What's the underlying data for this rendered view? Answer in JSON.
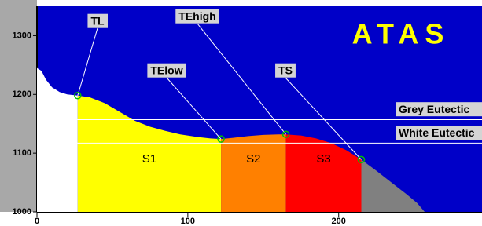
{
  "chart_data": {
    "type": "area",
    "title": "ATAS",
    "x": [
      0,
      3,
      6,
      10,
      15,
      20,
      27,
      35,
      45,
      55,
      65,
      75,
      85,
      95,
      105,
      115,
      122,
      130,
      140,
      150,
      160,
      165,
      175,
      185,
      195,
      205,
      215,
      225,
      235,
      245,
      252,
      257
    ],
    "values": [
      1245,
      1240,
      1225,
      1212,
      1204,
      1200,
      1198,
      1195,
      1185,
      1170,
      1155,
      1145,
      1138,
      1132,
      1128,
      1125,
      1124,
      1126,
      1129,
      1131,
      1132,
      1132,
      1130,
      1125,
      1117,
      1105,
      1089,
      1070,
      1050,
      1030,
      1015,
      1000
    ],
    "points": [
      {
        "label": "TL",
        "x": 27,
        "y": 1198
      },
      {
        "label": "TElow",
        "x": 122,
        "y": 1124
      },
      {
        "label": "TEhigh",
        "x": 165,
        "y": 1132
      },
      {
        "label": "TS",
        "x": 215,
        "y": 1089
      }
    ],
    "fill_colors": [
      "#ffffff",
      "#ffff00",
      "#ff8000",
      "#ff0000",
      "#808080"
    ],
    "regions": [
      "S1",
      "S2",
      "S3"
    ],
    "reference_lines": [
      {
        "label": "Grey Eutectic",
        "value": 1157
      },
      {
        "label": "White Eutectic",
        "value": 1117
      }
    ],
    "background": "#0000c8",
    "title_color": "#ffff00",
    "xlim": [
      0,
      295
    ],
    "ylim": [
      1000,
      1350
    ],
    "xticks": [
      0,
      100,
      200
    ],
    "yticks": [
      1000,
      1100,
      1200,
      1300
    ]
  }
}
